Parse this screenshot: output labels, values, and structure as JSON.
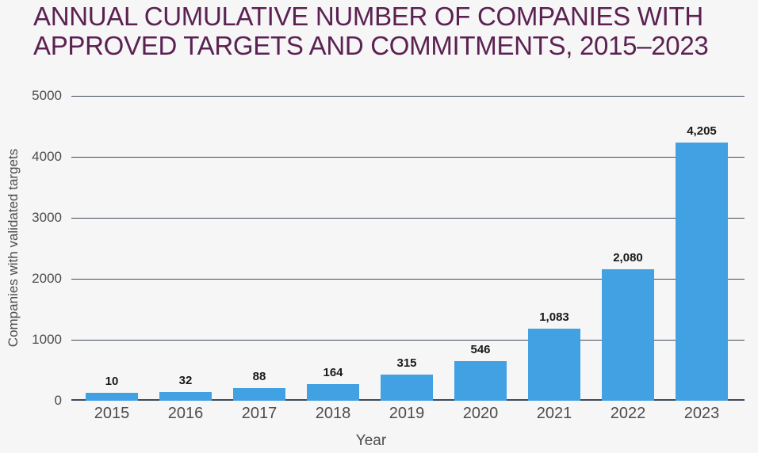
{
  "title": {
    "line1": "ANNUAL CUMULATIVE NUMBER OF COMPANIES WITH",
    "line2": "APPROVED TARGETS AND COMMITMENTS, 2015–2023"
  },
  "chart_data": {
    "type": "bar",
    "title": "ANNUAL CUMULATIVE NUMBER OF COMPANIES WITH APPROVED TARGETS AND COMMITMENTS, 2015–2023",
    "categories": [
      "2015",
      "2016",
      "2017",
      "2018",
      "2019",
      "2020",
      "2021",
      "2022",
      "2023"
    ],
    "values": [
      10,
      32,
      88,
      164,
      315,
      546,
      1083,
      2080,
      4205
    ],
    "value_labels": [
      "10",
      "32",
      "88",
      "164",
      "315",
      "546",
      "1,083",
      "2,080",
      "4,205"
    ],
    "xlabel": "Year",
    "ylabel": "Companies with validated targets",
    "yticks": [
      0,
      1000,
      2000,
      3000,
      4000,
      5000
    ],
    "ytick_labels": [
      "0",
      "1000",
      "2000",
      "3000",
      "4000",
      "5000"
    ],
    "ylim": [
      0,
      5000
    ],
    "grid": "horizontal",
    "legend": "none"
  },
  "colors": {
    "background": "#F6F6F6",
    "title": "#5B2152",
    "bar": "#42A1E3",
    "gridline": "#3E4A5B",
    "axis_line": "#3E4A5B",
    "tick_label": "#4C4C4E",
    "value_label": "#191919"
  }
}
